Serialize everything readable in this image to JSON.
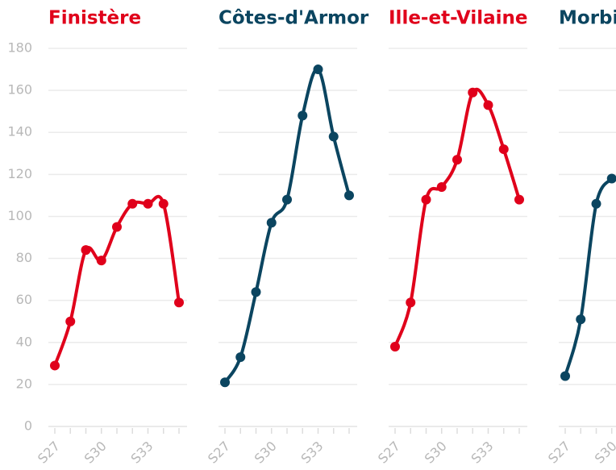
{
  "chart_data": {
    "type": "line",
    "categories": [
      "S27",
      null,
      null,
      "S30",
      null,
      null,
      "S33",
      null,
      null
    ],
    "ylim": [
      0,
      180
    ],
    "yticks": [
      0,
      20,
      40,
      60,
      80,
      100,
      120,
      140,
      160,
      180
    ],
    "grid": true,
    "series": [
      {
        "name": "Finistère",
        "color": "#e0001b",
        "values": [
          29,
          50,
          84,
          79,
          95,
          106,
          106,
          106,
          59
        ]
      },
      {
        "name": "Côtes-d'Armor",
        "color": "#0b4560",
        "values": [
          21,
          33,
          64,
          97,
          108,
          148,
          170,
          138,
          110
        ]
      },
      {
        "name": "Ille-et-Vilaine",
        "color": "#e0001b",
        "values": [
          38,
          59,
          108,
          114,
          127,
          159,
          153,
          132,
          108
        ]
      },
      {
        "name": "Morbihan",
        "color": "#0b4560",
        "values": [
          24,
          51,
          106,
          118,
          null,
          null,
          null,
          null,
          null
        ]
      }
    ]
  }
}
